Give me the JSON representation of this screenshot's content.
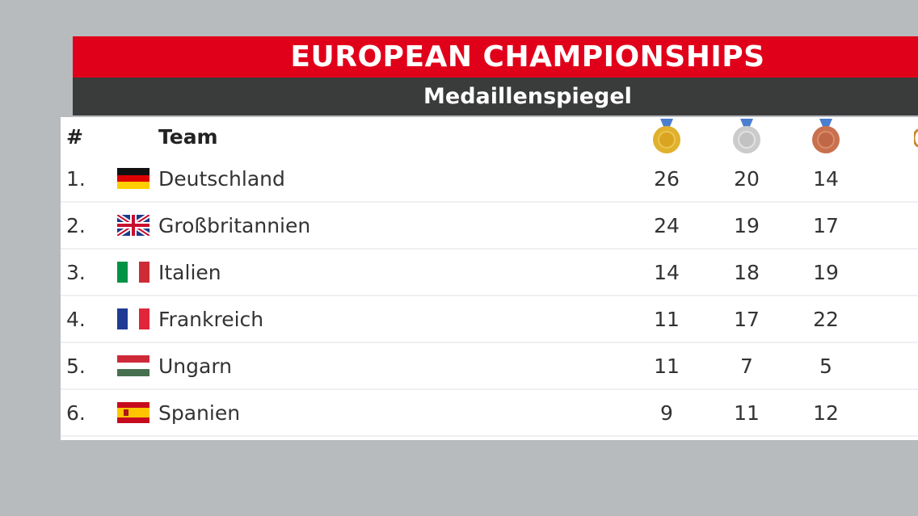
{
  "header": {
    "title": "EUROPEAN CHAMPIONSHIPS",
    "subtitle": "Medaillenspiegel"
  },
  "table": {
    "columns": {
      "rank": "#",
      "team": "Team",
      "gold": "gold-medal-icon",
      "silver": "silver-medal-icon",
      "bronze": "bronze-medal-icon"
    },
    "colors": {
      "gold": "#e0b12c",
      "silver": "#c9c9c9",
      "bronze": "#c9714f",
      "ribbon": "#4a7fd0"
    },
    "rows": [
      {
        "rank": "1.",
        "team": "Deutschland",
        "flag": "de",
        "gold": "26",
        "silver": "20",
        "bronze": "14"
      },
      {
        "rank": "2.",
        "team": "Großbritannien",
        "flag": "gb",
        "gold": "24",
        "silver": "19",
        "bronze": "17"
      },
      {
        "rank": "3.",
        "team": "Italien",
        "flag": "it",
        "gold": "14",
        "silver": "18",
        "bronze": "19"
      },
      {
        "rank": "4.",
        "team": "Frankreich",
        "flag": "fr",
        "gold": "11",
        "silver": "17",
        "bronze": "22"
      },
      {
        "rank": "5.",
        "team": "Ungarn",
        "flag": "hu",
        "gold": "11",
        "silver": "7",
        "bronze": "5"
      },
      {
        "rank": "6.",
        "team": "Spanien",
        "flag": "es",
        "gold": "9",
        "silver": "11",
        "bronze": "12"
      }
    ]
  }
}
